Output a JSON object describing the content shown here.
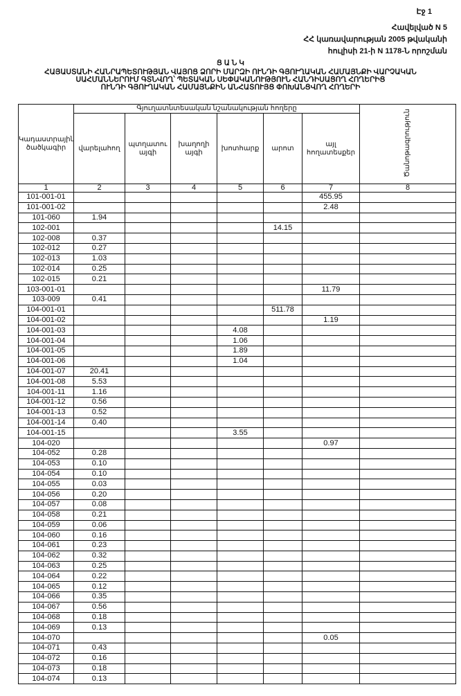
{
  "page_label": "Էջ 1",
  "annex": {
    "line1": "Հավելված N 5",
    "line2": "ՀՀ կառավարության 2005 թվականի",
    "line3": "հուլիսի 21-ի N 1178-Ն որոշման"
  },
  "title": {
    "heading": "Ց Ա Ն Կ",
    "line1": "ՀԱՅԱՍՏԱՆԻ ՀԱՆՐԱՊԵՏՈՒԹՅԱՆ ՎԱՅՈՑ ՁՈՐԻ ՄԱՐԶԻ ՈՒՆԴԻ ԳՅՈՒՂԱԿԱՆ ՀԱՄԱՅՆՔԻ ՎԱՐՉԱԿԱՆ",
    "line2": "ՍԱՀՄԱՆՆԵՐՈՒՄ ԳՏՆՎՈՂ՝ ՊԵՏԱԿԱՆ ՍԵՓԱԿԱՆՈՒԹՅՈՒՆ ՀԱՆԴԻՍԱՑՈՂ ՀՈՂԵՐԻՑ",
    "line3": "ՈՒՆԴԻ ԳՅՈՒՂԱԿԱՆ ՀԱՄԱՅՆՔԻՆ ԱՆՀԱՏՈՒՅՑ ՓՈԽԱՆՑՎՈՂ ՀՈՂԵՐԻ"
  },
  "table": {
    "group_header": "Գյուղատնտեսական նշանակության հողերը",
    "columns": [
      "Կադաստրային ծածկագիր",
      "վարելահող",
      "պտղատու այգի",
      "խաղողի այգի",
      "խոտհարք",
      "արոտ",
      "այլ հողատեսքեր",
      "Ծանոթագրություն"
    ],
    "column_numbers": [
      "1",
      "2",
      "3",
      "4",
      "5",
      "6",
      "7",
      "8"
    ],
    "rows": [
      [
        "101-001-01",
        "",
        "",
        "",
        "",
        "",
        "455.95",
        ""
      ],
      [
        "101-001-02",
        "",
        "",
        "",
        "",
        "",
        "2.48",
        ""
      ],
      [
        "101-060",
        "1.94",
        "",
        "",
        "",
        "",
        "",
        ""
      ],
      [
        "102-001",
        "",
        "",
        "",
        "",
        "14.15",
        "",
        ""
      ],
      [
        "102-008",
        "0.37",
        "",
        "",
        "",
        "",
        "",
        ""
      ],
      [
        "102-012",
        "0.27",
        "",
        "",
        "",
        "",
        "",
        ""
      ],
      [
        "102-013",
        "1.03",
        "",
        "",
        "",
        "",
        "",
        ""
      ],
      [
        "102-014",
        "0.25",
        "",
        "",
        "",
        "",
        "",
        ""
      ],
      [
        "102-015",
        "0.21",
        "",
        "",
        "",
        "",
        "",
        ""
      ],
      [
        "103-001-01",
        "",
        "",
        "",
        "",
        "",
        "11.79",
        ""
      ],
      [
        "103-009",
        "0.41",
        "",
        "",
        "",
        "",
        "",
        ""
      ],
      [
        "104-001-01",
        "",
        "",
        "",
        "",
        "511.78",
        "",
        ""
      ],
      [
        "104-001-02",
        "",
        "",
        "",
        "",
        "",
        "1.19",
        ""
      ],
      [
        "104-001-03",
        "",
        "",
        "",
        "4.08",
        "",
        "",
        ""
      ],
      [
        "104-001-04",
        "",
        "",
        "",
        "1.06",
        "",
        "",
        ""
      ],
      [
        "104-001-05",
        "",
        "",
        "",
        "1.89",
        "",
        "",
        ""
      ],
      [
        "104-001-06",
        "",
        "",
        "",
        "1.04",
        "",
        "",
        ""
      ],
      [
        "104-001-07",
        "20.41",
        "",
        "",
        "",
        "",
        "",
        ""
      ],
      [
        "104-001-08",
        "5.53",
        "",
        "",
        "",
        "",
        "",
        ""
      ],
      [
        "104-001-11",
        "1.16",
        "",
        "",
        "",
        "",
        "",
        ""
      ],
      [
        "104-001-12",
        "0.56",
        "",
        "",
        "",
        "",
        "",
        ""
      ],
      [
        "104-001-13",
        "0.52",
        "",
        "",
        "",
        "",
        "",
        ""
      ],
      [
        "104-001-14",
        "0.40",
        "",
        "",
        "",
        "",
        "",
        ""
      ],
      [
        "104-001-15",
        "",
        "",
        "",
        "3.55",
        "",
        "",
        ""
      ],
      [
        "104-020",
        "",
        "",
        "",
        "",
        "",
        "0.97",
        ""
      ],
      [
        "104-052",
        "0.28",
        "",
        "",
        "",
        "",
        "",
        ""
      ],
      [
        "104-053",
        "0.10",
        "",
        "",
        "",
        "",
        "",
        ""
      ],
      [
        "104-054",
        "0.10",
        "",
        "",
        "",
        "",
        "",
        ""
      ],
      [
        "104-055",
        "0.03",
        "",
        "",
        "",
        "",
        "",
        ""
      ],
      [
        "104-056",
        "0.20",
        "",
        "",
        "",
        "",
        "",
        ""
      ],
      [
        "104-057",
        "0.08",
        "",
        "",
        "",
        "",
        "",
        ""
      ],
      [
        "104-058",
        "0.21",
        "",
        "",
        "",
        "",
        "",
        ""
      ],
      [
        "104-059",
        "0.06",
        "",
        "",
        "",
        "",
        "",
        ""
      ],
      [
        "104-060",
        "0.16",
        "",
        "",
        "",
        "",
        "",
        ""
      ],
      [
        "104-061",
        "0.23",
        "",
        "",
        "",
        "",
        "",
        ""
      ],
      [
        "104-062",
        "0.32",
        "",
        "",
        "",
        "",
        "",
        ""
      ],
      [
        "104-063",
        "0.25",
        "",
        "",
        "",
        "",
        "",
        ""
      ],
      [
        "104-064",
        "0.22",
        "",
        "",
        "",
        "",
        "",
        ""
      ],
      [
        "104-065",
        "0.12",
        "",
        "",
        "",
        "",
        "",
        ""
      ],
      [
        "104-066",
        "0.35",
        "",
        "",
        "",
        "",
        "",
        ""
      ],
      [
        "104-067",
        "0.56",
        "",
        "",
        "",
        "",
        "",
        ""
      ],
      [
        "104-068",
        "0.18",
        "",
        "",
        "",
        "",
        "",
        ""
      ],
      [
        "104-069",
        "0.13",
        "",
        "",
        "",
        "",
        "",
        ""
      ],
      [
        "104-070",
        "",
        "",
        "",
        "",
        "",
        "0.05",
        ""
      ],
      [
        "104-071",
        "0.43",
        "",
        "",
        "",
        "",
        "",
        ""
      ],
      [
        "104-072",
        "0.16",
        "",
        "",
        "",
        "",
        "",
        ""
      ],
      [
        "104-073",
        "0.18",
        "",
        "",
        "",
        "",
        "",
        ""
      ],
      [
        "104-074",
        "0.13",
        "",
        "",
        "",
        "",
        "",
        ""
      ]
    ]
  }
}
